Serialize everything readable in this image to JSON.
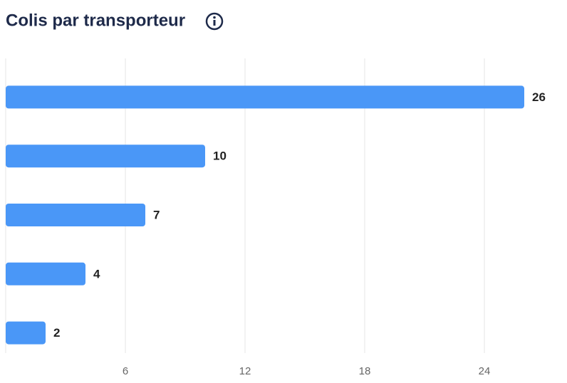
{
  "chart_data": {
    "type": "hbar",
    "title": "Colis par transporteur",
    "categories": [
      null,
      null,
      null,
      null,
      null
    ],
    "values": [
      26,
      10,
      7,
      4,
      2
    ],
    "color": "#4a97f7",
    "xlim": [
      0,
      28
    ],
    "xticks": [
      6,
      12,
      18,
      24
    ],
    "grid": true
  }
}
